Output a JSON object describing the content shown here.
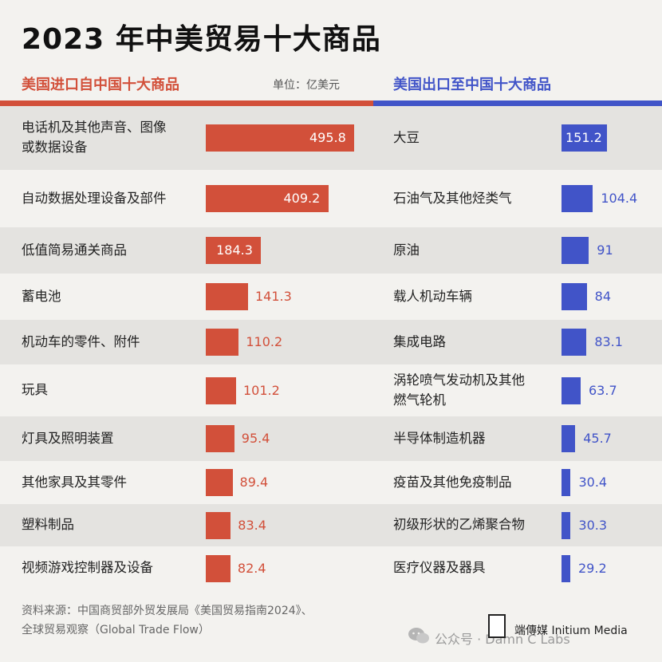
{
  "title": "2023 年中美贸易十大商品",
  "unit": "单位：亿美元",
  "colors": {
    "import": "#d2503a",
    "export": "#4154c8"
  },
  "chart_data": [
    {
      "type": "bar",
      "title": "美国进口自中国十大商品",
      "orientation": "horizontal",
      "categories": [
        [
          "电话机及其他声音、图像",
          "或数据设备"
        ],
        [
          "自动数据处理设备及部件"
        ],
        [
          "低值简易通关商品"
        ],
        [
          "蓄电池"
        ],
        [
          "机动车的零件、附件"
        ],
        [
          "玩具"
        ],
        [
          "灯具及照明装置"
        ],
        [
          "其他家具及其零件"
        ],
        [
          "塑料制品"
        ],
        [
          "视频游戏控制器及设备"
        ]
      ],
      "values": [
        495.8,
        409.2,
        184.3,
        141.3,
        110.2,
        101.2,
        95.4,
        89.4,
        83.4,
        82.4
      ],
      "value_labels": [
        "495.8",
        "409.2",
        "184.3",
        "141.3",
        "110.2",
        "101.2",
        "95.4",
        "89.4",
        "83.4",
        "82.4"
      ]
    },
    {
      "type": "bar",
      "title": "美国出口至中国十大商品",
      "orientation": "horizontal",
      "categories": [
        [
          "大豆"
        ],
        [
          "石油气及其他烃类气"
        ],
        [
          "原油"
        ],
        [
          "载人机动车辆"
        ],
        [
          "集成电路"
        ],
        [
          "涡轮喷气发动机及其他",
          "燃气轮机"
        ],
        [
          "半导体制造机器"
        ],
        [
          "疫苗及其他免疫制品"
        ],
        [
          "初级形状的乙烯聚合物"
        ],
        [
          "医疗仪器及器具"
        ]
      ],
      "values": [
        151.2,
        104.4,
        91,
        84,
        83.1,
        63.7,
        45.7,
        30.4,
        30.3,
        29.2
      ],
      "value_labels": [
        "151.2",
        "104.4",
        "91",
        "84",
        "83.1",
        "63.7",
        "45.7",
        "30.4",
        "30.3",
        "29.2"
      ]
    }
  ],
  "footer": {
    "line1": "资料来源：中国商贸部外贸发展局《美国贸易指南2024》、",
    "line2": "全球贸易观察（Global Trade Flow）"
  },
  "brand": "端傳媒  Initium Media",
  "watermark": "公众号 · Damn C Labs"
}
